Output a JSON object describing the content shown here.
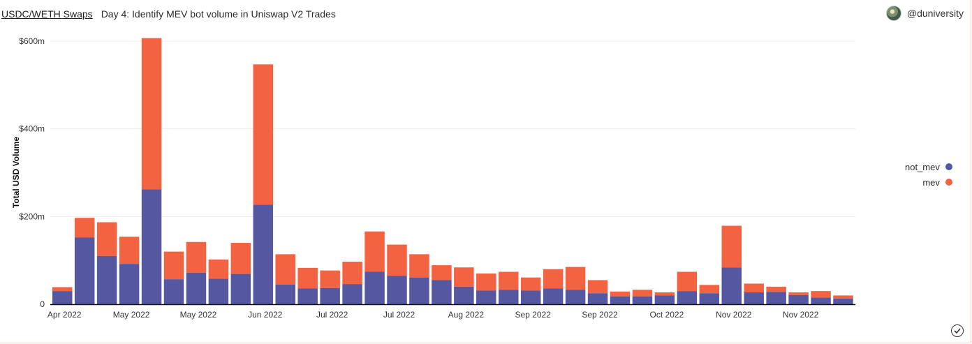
{
  "header": {
    "query_title": "USDC/WETH Swaps",
    "viz_title": "Day 4: Identify MEV bot volume in Uniswap V2 Trades",
    "author": "@duniversity"
  },
  "colors": {
    "not_mev": "#5557a0",
    "mev": "#f36342",
    "grid": "#ececec",
    "axis": "#111111"
  },
  "chart_data": {
    "type": "bar",
    "stacked": true,
    "title": "Day 4: Identify MEV bot volume in Uniswap V2 Trades",
    "xlabel": "",
    "ylabel": "Total USD Volume",
    "ylim": [
      0,
      600
    ],
    "y_unit": "millions USD",
    "y_ticks": [
      {
        "value": 0,
        "label": "0"
      },
      {
        "value": 200,
        "label": "$200m"
      },
      {
        "value": 400,
        "label": "$400m"
      },
      {
        "value": 600,
        "label": "$600m"
      }
    ],
    "x_tick_labels": [
      {
        "index": 0,
        "label": "Apr 2022"
      },
      {
        "index": 3,
        "label": "May 2022"
      },
      {
        "index": 6,
        "label": "May 2022"
      },
      {
        "index": 9,
        "label": "Jun 2022"
      },
      {
        "index": 12,
        "label": "Jul 2022"
      },
      {
        "index": 15,
        "label": "Jul 2022"
      },
      {
        "index": 18,
        "label": "Aug 2022"
      },
      {
        "index": 21,
        "label": "Sep 2022"
      },
      {
        "index": 24,
        "label": "Sep 2022"
      },
      {
        "index": 27,
        "label": "Oct 2022"
      },
      {
        "index": 30,
        "label": "Nov 2022"
      },
      {
        "index": 33,
        "label": "Nov 2022"
      }
    ],
    "legend": [
      "not_mev",
      "mev"
    ],
    "legend_position": "right",
    "series": [
      {
        "name": "not_mev",
        "values": [
          30,
          152,
          110,
          92,
          262,
          57,
          72,
          58,
          69,
          227,
          45,
          36,
          37,
          46,
          74,
          65,
          61,
          55,
          40,
          31,
          33,
          31,
          36,
          33,
          25,
          18,
          18,
          20,
          30,
          25,
          84,
          27,
          28,
          21,
          15,
          13
        ]
      },
      {
        "name": "mev",
        "values": [
          9,
          45,
          77,
          62,
          345,
          63,
          70,
          44,
          71,
          320,
          69,
          47,
          40,
          51,
          92,
          71,
          53,
          34,
          44,
          39,
          41,
          30,
          44,
          52,
          30,
          11,
          15,
          7,
          44,
          19,
          95,
          20,
          12,
          6,
          15,
          7
        ]
      }
    ]
  },
  "legend": {
    "items": [
      {
        "label": "not_mev",
        "color": "#5557a0"
      },
      {
        "label": "mev",
        "color": "#f36342"
      }
    ]
  }
}
